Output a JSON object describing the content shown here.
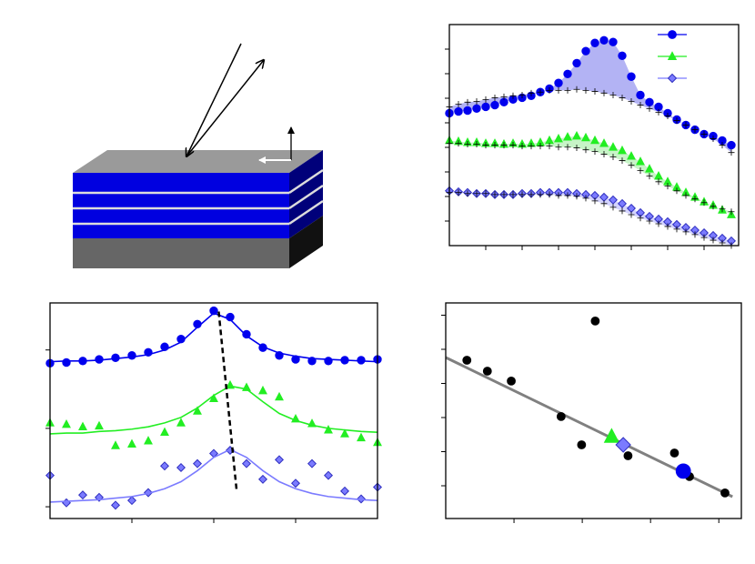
{
  "chart_data": [
    {
      "type": "scatter",
      "x": [
        0,
        0.25,
        0.5,
        0.75,
        1,
        1.25,
        1.5,
        1.75,
        2,
        2.25,
        2.5,
        2.75,
        3,
        3.25,
        3.5,
        3.75,
        4,
        4.25,
        4.5,
        4.75,
        5,
        5.25,
        5.5,
        5.75,
        6,
        6.25,
        6.5,
        6.75,
        7,
        7.25,
        7.5,
        7.75
      ],
      "xlim": [
        0,
        7.95
      ],
      "xticks": [
        1,
        2,
        3,
        4,
        5,
        6,
        7
      ],
      "ylim": [
        0,
        9
      ],
      "yticks": [
        1,
        2,
        3,
        4,
        5,
        6,
        7,
        8
      ],
      "legend": "upper right",
      "fills": [
        {
          "between": [
            0,
            1
          ],
          "color": "#9a9af0"
        },
        {
          "between": [
            2,
            3
          ],
          "color": "#b4f0b4"
        },
        {
          "between": [
            4,
            5
          ],
          "color": "#c4c4ff"
        }
      ],
      "series": [
        {
          "color": "#0000ee",
          "marker": "circle",
          "in_legend": true,
          "values": [
            5.39,
            5.46,
            5.5,
            5.58,
            5.65,
            5.72,
            5.84,
            5.95,
            6.02,
            6.1,
            6.25,
            6.39,
            6.62,
            6.99,
            7.43,
            7.92,
            8.25,
            8.36,
            8.29,
            7.73,
            6.88,
            6.13,
            5.84,
            5.65,
            5.39,
            5.13,
            4.91,
            4.72,
            4.54,
            4.46,
            4.28,
            4.09
          ]
        },
        {
          "color": "#000000",
          "marker": "plus",
          "values": [
            5.65,
            5.76,
            5.84,
            5.87,
            5.95,
            6.02,
            6.06,
            6.1,
            6.13,
            6.21,
            6.25,
            6.32,
            6.32,
            6.32,
            6.36,
            6.32,
            6.28,
            6.21,
            6.13,
            6.02,
            5.87,
            5.72,
            5.58,
            5.43,
            5.28,
            5.09,
            4.91,
            4.72,
            4.54,
            4.35,
            4.09,
            3.79
          ]
        },
        {
          "color": "#22ee22",
          "marker": "triangle",
          "in_legend": true,
          "values": [
            4.28,
            4.24,
            4.2,
            4.2,
            4.16,
            4.16,
            4.13,
            4.16,
            4.13,
            4.16,
            4.2,
            4.28,
            4.35,
            4.42,
            4.46,
            4.39,
            4.28,
            4.16,
            4.01,
            3.87,
            3.64,
            3.42,
            3.12,
            2.83,
            2.6,
            2.38,
            2.16,
            1.97,
            1.78,
            1.64,
            1.45,
            1.26
          ]
        },
        {
          "color": "#000000",
          "marker": "plus",
          "values": [
            4.16,
            4.16,
            4.13,
            4.13,
            4.09,
            4.09,
            4.09,
            4.09,
            4.05,
            4.05,
            4.05,
            4.05,
            4.01,
            4.01,
            3.98,
            3.9,
            3.83,
            3.72,
            3.61,
            3.46,
            3.27,
            3.05,
            2.83,
            2.6,
            2.42,
            2.23,
            2.04,
            1.9,
            1.75,
            1.6,
            1.49,
            1.38
          ]
        },
        {
          "color": "#7b7bff",
          "marker": "diamond",
          "in_legend": true,
          "values": [
            2.23,
            2.19,
            2.16,
            2.12,
            2.12,
            2.08,
            2.08,
            2.08,
            2.12,
            2.12,
            2.16,
            2.16,
            2.16,
            2.16,
            2.12,
            2.08,
            2.04,
            1.97,
            1.86,
            1.71,
            1.52,
            1.34,
            1.19,
            1.08,
            0.97,
            0.86,
            0.74,
            0.63,
            0.52,
            0.41,
            0.3,
            0.19
          ]
        },
        {
          "color": "#000000",
          "marker": "plus",
          "values": [
            2.16,
            2.16,
            2.12,
            2.12,
            2.12,
            2.08,
            2.08,
            2.08,
            2.08,
            2.08,
            2.08,
            2.08,
            2.04,
            2.04,
            2.01,
            1.93,
            1.82,
            1.71,
            1.56,
            1.41,
            1.26,
            1.12,
            1.0,
            0.89,
            0.78,
            0.67,
            0.56,
            0.45,
            0.33,
            0.22,
            0.11,
            0
          ]
        }
      ]
    },
    {
      "type": "scatter",
      "x": [
        0,
        0.2,
        0.4,
        0.6,
        0.8,
        1,
        1.2,
        1.4,
        1.6,
        1.8,
        2,
        2.2,
        2.4,
        2.6,
        2.8,
        3,
        3.2,
        3.4,
        3.6,
        3.8,
        4
      ],
      "xlim": [
        0,
        4
      ],
      "xticks": [
        1,
        2,
        3
      ],
      "ylim": [
        -0.15,
        2.6
      ],
      "yticks": [
        0,
        1,
        2
      ],
      "series": [
        {
          "color": "#0000ee",
          "marker": "circle",
          "values": [
            1.83,
            1.84,
            1.86,
            1.88,
            1.9,
            1.93,
            1.97,
            2.04,
            2.14,
            2.33,
            2.5,
            2.42,
            2.2,
            2.03,
            1.93,
            1.88,
            1.86,
            1.86,
            1.87,
            1.87,
            1.88
          ]
        },
        {
          "color": "#0000ee",
          "mode": "line",
          "values": [
            1.85,
            1.86,
            1.86,
            1.87,
            1.89,
            1.91,
            1.94,
            2.0,
            2.1,
            2.29,
            2.47,
            2.39,
            2.18,
            2.04,
            1.96,
            1.92,
            1.89,
            1.88,
            1.87,
            1.86,
            1.85
          ]
        },
        {
          "color": "#22ee22",
          "marker": "triangle",
          "values": [
            1.07,
            1.05,
            1.02,
            1.03,
            0.78,
            0.8,
            0.84,
            0.95,
            1.07,
            1.22,
            1.38,
            1.55,
            1.52,
            1.48,
            1.4,
            1.12,
            1.06,
            0.98,
            0.93,
            0.88,
            0.82
          ]
        },
        {
          "color": "#22ee22",
          "mode": "line",
          "values": [
            0.93,
            0.94,
            0.94,
            0.96,
            0.97,
            0.99,
            1.02,
            1.07,
            1.14,
            1.26,
            1.42,
            1.54,
            1.5,
            1.34,
            1.19,
            1.1,
            1.04,
            1.0,
            0.98,
            0.96,
            0.95
          ]
        },
        {
          "color": "#7b7bff",
          "marker": "diamond",
          "values": [
            0.4,
            0.05,
            0.15,
            0.12,
            0.02,
            0.08,
            0.18,
            0.52,
            0.5,
            0.55,
            0.68,
            0.72,
            0.55,
            0.35,
            0.6,
            0.3,
            0.55,
            0.4,
            0.2,
            0.1,
            0.25
          ]
        },
        {
          "color": "#7b7bff",
          "mode": "line",
          "values": [
            0.06,
            0.07,
            0.08,
            0.09,
            0.11,
            0.13,
            0.17,
            0.23,
            0.32,
            0.46,
            0.63,
            0.73,
            0.63,
            0.46,
            0.32,
            0.23,
            0.17,
            0.13,
            0.11,
            0.09,
            0.08
          ]
        },
        {
          "color": "#000000",
          "mode": "line",
          "dash": true,
          "x": [
            2.06,
            2.28
          ],
          "values": [
            2.49,
            0.2
          ]
        }
      ]
    },
    {
      "type": "scatter",
      "xlim": [
        0,
        4.33
      ],
      "xticks": [
        1,
        2,
        3,
        4
      ],
      "ylim": [
        0.04,
        6.36
      ],
      "yticks": [
        1,
        2,
        3,
        4,
        5,
        6
      ],
      "series": [
        {
          "color": "#808080",
          "mode": "line",
          "x": [
            0,
            4.2
          ],
          "values": [
            4.76,
            0.68
          ]
        },
        {
          "color": "#000000",
          "marker": "circle",
          "x": [
            0.31,
            0.61,
            0.96,
            1.69,
            1.99,
            2.19,
            2.67,
            3.35,
            3.57,
            4.09
          ],
          "values": [
            4.68,
            4.36,
            4.07,
            3.03,
            2.2,
            5.83,
            1.88,
            1.96,
            1.27,
            0.79
          ]
        },
        {
          "color": "#22ee22",
          "marker": "triangle",
          "size": "large",
          "x": [
            2.43
          ],
          "values": [
            2.44
          ]
        },
        {
          "color": "#7b7bff",
          "marker": "diamond",
          "size": "large",
          "x": [
            2.6
          ],
          "values": [
            2.2
          ]
        },
        {
          "color": "#0000ee",
          "marker": "circle",
          "size": "large",
          "x": [
            3.48
          ],
          "values": [
            1.43
          ]
        }
      ]
    }
  ]
}
